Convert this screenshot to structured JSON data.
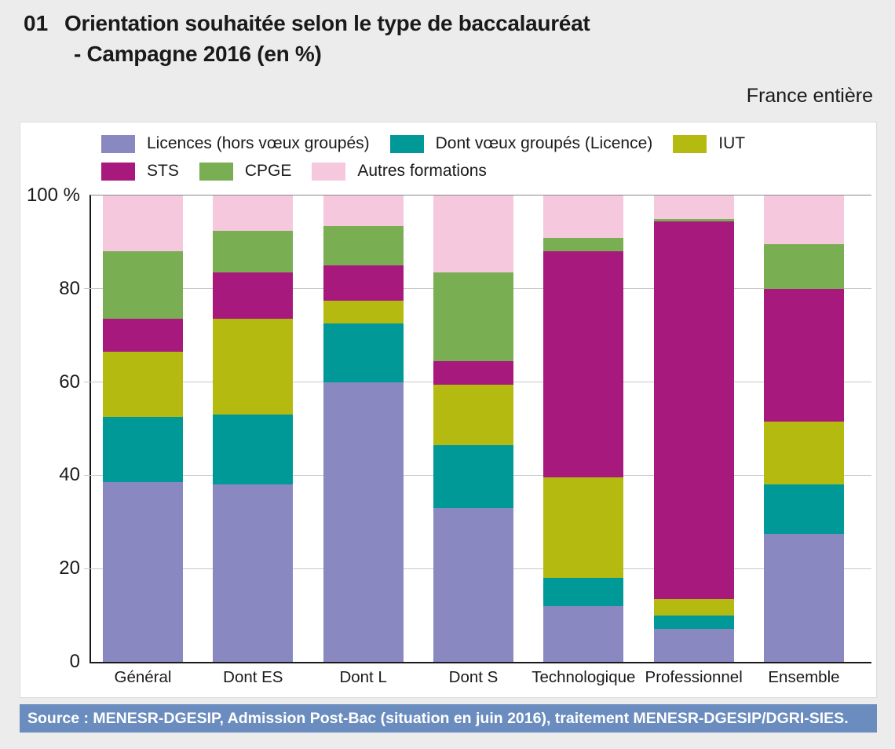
{
  "page": {
    "background": "#ECECEC"
  },
  "header": {
    "number": "01",
    "title_line1": "Orientation souhaitée selon le type de baccalauréat",
    "title_line2": "- Campagne 2016 (en %)",
    "region_note": "France entière"
  },
  "source_bar": {
    "text": "Source  : MENESR-DGESIP, Admission Post-Bac (situation en juin 2016), traitement MENESR-DGESIP/DGRI-SIES.",
    "background": "#6A8CBE",
    "text_color": "#FFFFFF"
  },
  "chart_data": {
    "type": "bar",
    "stacked": true,
    "unit": "%",
    "title": "Orientation souhaitée selon le type de baccalauréat - Campagne 2016 (en %)",
    "xlabel": "",
    "ylabel": "%",
    "ylim": [
      0,
      100
    ],
    "grid": true,
    "legend_position": "top",
    "ytick_values": [
      0,
      20,
      40,
      60,
      80,
      100
    ],
    "ytick_labels": [
      "0",
      "20",
      "40",
      "60",
      "80",
      "100 %"
    ],
    "categories": [
      "Général",
      "Dont ES",
      "Dont L",
      "Dont S",
      "Technologique",
      "Professionnel",
      "Ensemble"
    ],
    "series": [
      {
        "name": "Licences (hors vœux groupés)",
        "color": "#8A88C0",
        "values": [
          38.5,
          38,
          60,
          33,
          12,
          7,
          27.5
        ]
      },
      {
        "name": "Dont vœux groupés (Licence)",
        "color": "#009997",
        "values": [
          14,
          15,
          12.5,
          13.5,
          6,
          3,
          10.5
        ]
      },
      {
        "name": "IUT",
        "color": "#B4BA0F",
        "values": [
          14,
          20.5,
          5,
          13,
          21.5,
          3.5,
          13.5
        ]
      },
      {
        "name": "STS",
        "color": "#A8197E",
        "values": [
          7,
          10,
          7.5,
          5,
          48.5,
          81,
          28.5
        ]
      },
      {
        "name": "CPGE",
        "color": "#7AAE53",
        "values": [
          14.5,
          9,
          8.5,
          19,
          3,
          0.5,
          9.5
        ]
      },
      {
        "name": "Autres formations",
        "color": "#F5C8DE",
        "values": [
          12,
          7.5,
          6.5,
          16.5,
          9,
          5,
          10.5
        ]
      }
    ],
    "colors": {
      "axis": "#1A1A1A",
      "gridline": "#C8C8C8",
      "plot_top_line": "#8A8A8A"
    }
  }
}
